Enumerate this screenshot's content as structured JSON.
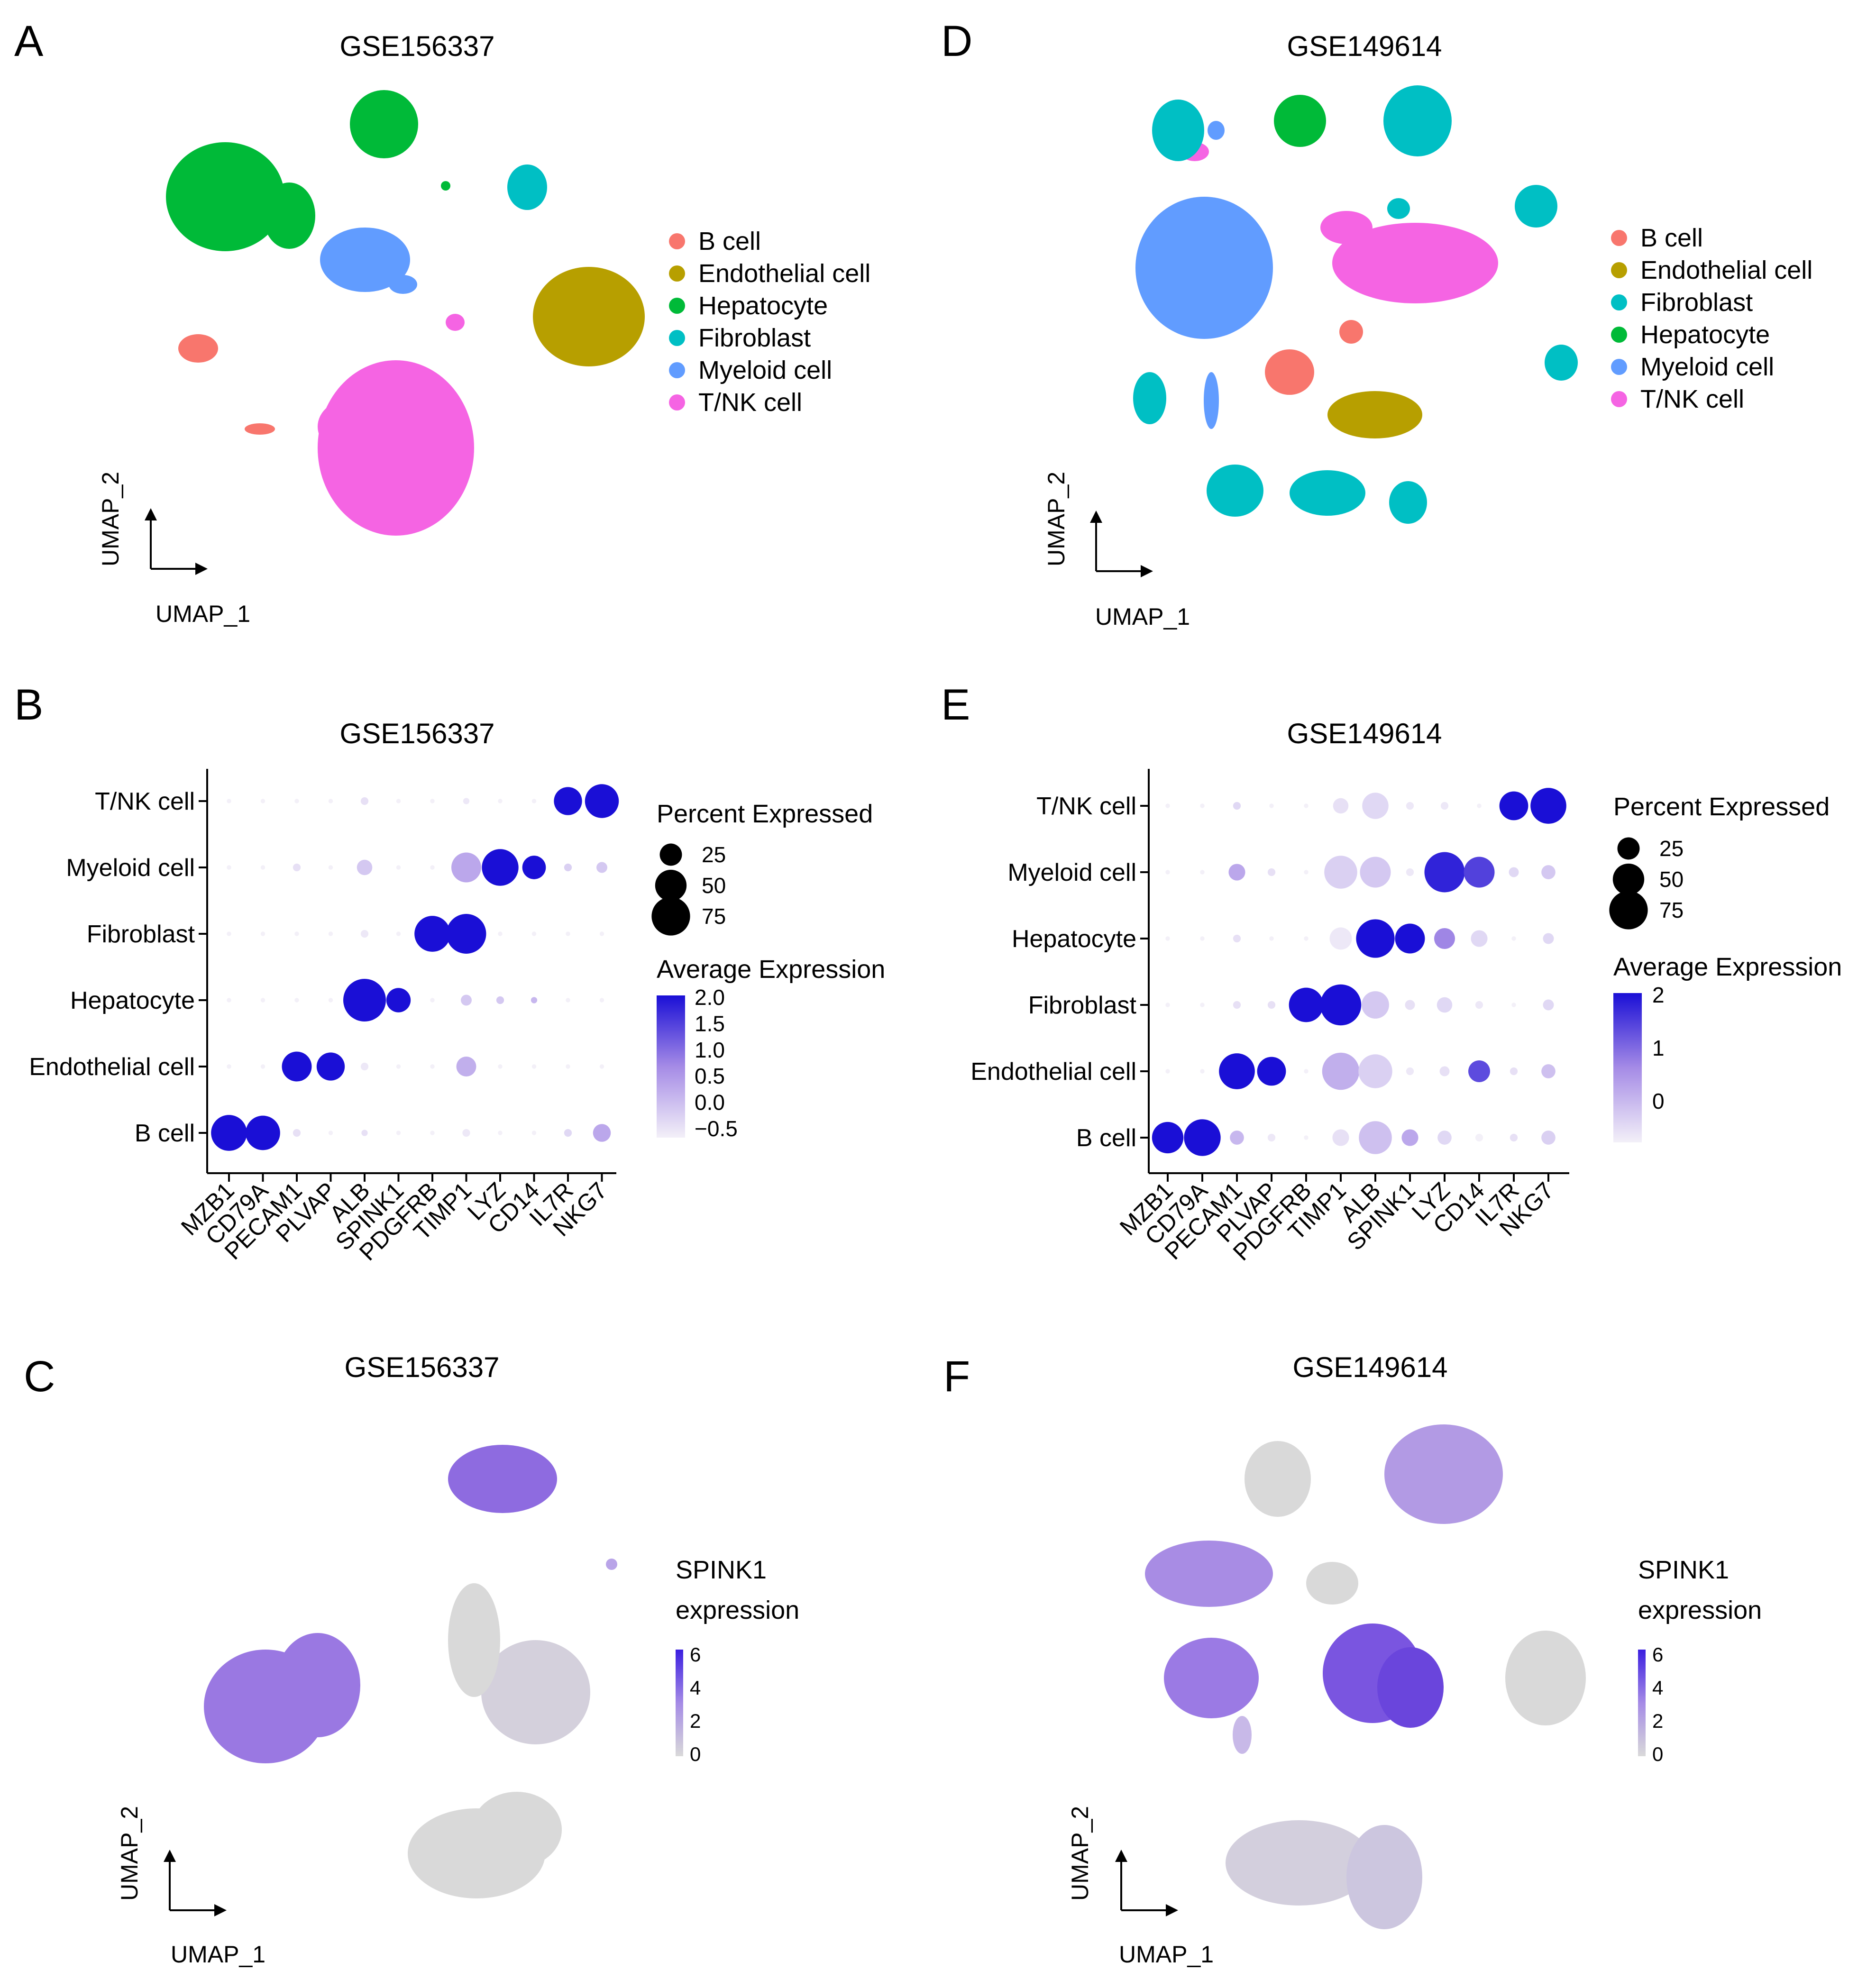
{
  "panels": {
    "A": {
      "label": "A",
      "title": "GSE156337"
    },
    "B": {
      "label": "B",
      "title": "GSE156337"
    },
    "C": {
      "label": "C",
      "title": "GSE156337"
    },
    "D": {
      "label": "D",
      "title": "GSE149614"
    },
    "E": {
      "label": "E",
      "title": "GSE149614"
    },
    "F": {
      "label": "F",
      "title": "GSE149614"
    }
  },
  "axes": {
    "umap_x": "UMAP_1",
    "umap_y": "UMAP_2"
  },
  "colors": {
    "B cell": "#F8766D",
    "Endothelial cell": "#B79F00",
    "Hepatocyte": "#00BA38",
    "Fibroblast": "#00BFC4",
    "Myeloid cell": "#619CFF",
    "T/NK cell": "#F564E3",
    "low_expr": "#d9d9d9",
    "high_expr": "#1a0fd6"
  },
  "legend_A": [
    "B cell",
    "Endothelial cell",
    "Hepatocyte",
    "Fibroblast",
    "Myeloid cell",
    "T/NK cell"
  ],
  "legend_D": [
    "B cell",
    "Endothelial cell",
    "Fibroblast",
    "Hepatocyte",
    "Myeloid cell",
    "T/NK cell"
  ],
  "dot_legend": {
    "size_title": "Percent Expressed",
    "size_values": [
      "25",
      "50",
      "75"
    ],
    "color_title": "Average Expression",
    "B_color_ticks": [
      "2.0",
      "1.5",
      "1.0",
      "0.5",
      "0.0",
      "−0.5"
    ],
    "E_color_ticks": [
      "2",
      "1",
      "0"
    ]
  },
  "feature_legend": {
    "line1": "SPINK1",
    "line2": "expression",
    "ticks": [
      "6",
      "4",
      "2",
      "0"
    ]
  },
  "chart_data": [
    {
      "panel": "B",
      "type": "scatter",
      "subtype": "dotplot",
      "title": "GSE156337",
      "categories": [
        "MZB1",
        "CD79A",
        "PECAM1",
        "PLVAP",
        "ALB",
        "SPINK1",
        "PDGFRB",
        "TIMP1",
        "LYZ",
        "CD14",
        "IL7R",
        "NKG7"
      ],
      "rows": [
        "T/NK cell",
        "Myeloid cell",
        "Fibroblast",
        "Hepatocyte",
        "Endothelial cell",
        "B cell"
      ],
      "pct_expressed": [
        [
          1,
          1,
          1,
          1,
          3,
          1,
          1,
          2,
          1,
          1,
          40,
          58
        ],
        [
          1,
          1,
          3,
          1,
          12,
          1,
          1,
          45,
          68,
          28,
          3,
          6
        ],
        [
          1,
          1,
          1,
          1,
          3,
          1,
          65,
          80,
          1,
          1,
          1,
          1
        ],
        [
          1,
          1,
          1,
          1,
          92,
          30,
          1,
          6,
          3,
          2,
          1,
          1
        ],
        [
          1,
          1,
          45,
          40,
          3,
          1,
          1,
          20,
          1,
          1,
          1,
          1
        ],
        [
          65,
          60,
          3,
          1,
          2,
          1,
          1,
          3,
          1,
          1,
          3,
          16
        ]
      ],
      "avg_expression": [
        [
          -0.5,
          -0.5,
          -0.5,
          -0.5,
          -0.3,
          -0.5,
          -0.5,
          -0.4,
          -0.5,
          -0.5,
          2.0,
          2.0
        ],
        [
          -0.5,
          -0.5,
          -0.3,
          -0.5,
          0.0,
          -0.5,
          -0.5,
          0.4,
          2.0,
          2.0,
          -0.1,
          0.0
        ],
        [
          -0.5,
          -0.5,
          -0.5,
          -0.5,
          -0.4,
          -0.5,
          2.0,
          2.0,
          -0.5,
          -0.5,
          -0.5,
          -0.5
        ],
        [
          -0.5,
          -0.5,
          -0.5,
          -0.5,
          2.0,
          2.0,
          -0.5,
          0.0,
          0.0,
          0.2,
          -0.5,
          -0.5
        ],
        [
          -0.5,
          -0.5,
          2.0,
          2.0,
          -0.4,
          -0.5,
          -0.5,
          0.3,
          -0.5,
          -0.5,
          -0.5,
          -0.5
        ],
        [
          2.0,
          2.0,
          -0.3,
          -0.5,
          -0.3,
          -0.5,
          -0.5,
          -0.4,
          -0.5,
          -0.5,
          -0.2,
          0.4
        ]
      ],
      "size_legend": [
        25,
        50,
        75
      ],
      "color_range": [
        -0.5,
        2.0
      ]
    },
    {
      "panel": "E",
      "type": "scatter",
      "subtype": "dotplot",
      "title": "GSE149614",
      "categories": [
        "MZB1",
        "CD79A",
        "PECAM1",
        "PLVAP",
        "PDGFRB",
        "TIMP1",
        "ALB",
        "SPINK1",
        "LYZ",
        "CD14",
        "IL7R",
        "NKG7"
      ],
      "rows": [
        "T/NK cell",
        "Myeloid cell",
        "Hepatocyte",
        "Fibroblast",
        "Endothelial cell",
        "B cell"
      ],
      "pct_expressed": [
        [
          1,
          1,
          3,
          1,
          1,
          12,
          35,
          3,
          3,
          1,
          42,
          65
        ],
        [
          1,
          1,
          14,
          3,
          1,
          55,
          48,
          3,
          82,
          48,
          5,
          10
        ],
        [
          1,
          1,
          3,
          1,
          1,
          25,
          75,
          45,
          22,
          14,
          1,
          6
        ],
        [
          1,
          1,
          3,
          3,
          60,
          85,
          38,
          5,
          12,
          3,
          1,
          6
        ],
        [
          1,
          1,
          65,
          42,
          1,
          70,
          58,
          3,
          5,
          24,
          3,
          10
        ],
        [
          50,
          68,
          10,
          3,
          1,
          14,
          55,
          14,
          10,
          3,
          3,
          10
        ]
      ],
      "avg_expression": [
        [
          -0.5,
          -0.5,
          -0.2,
          -0.5,
          -0.5,
          -0.3,
          -0.2,
          -0.4,
          -0.4,
          -0.5,
          2.0,
          2.0
        ],
        [
          -0.5,
          -0.5,
          0.4,
          -0.3,
          -0.5,
          -0.1,
          0.0,
          -0.4,
          1.8,
          1.5,
          -0.2,
          0.0
        ],
        [
          -0.5,
          -0.5,
          -0.3,
          -0.5,
          -0.5,
          -0.4,
          2.0,
          2.0,
          0.8,
          -0.2,
          -0.5,
          -0.2
        ],
        [
          -0.5,
          -0.5,
          -0.3,
          -0.3,
          2.0,
          2.0,
          0.0,
          -0.3,
          -0.2,
          -0.4,
          -0.5,
          -0.2
        ],
        [
          -0.5,
          -0.5,
          2.0,
          2.0,
          -0.5,
          0.3,
          -0.1,
          -0.4,
          -0.3,
          1.4,
          -0.3,
          0.1
        ],
        [
          2.0,
          2.0,
          0.2,
          -0.4,
          -0.5,
          -0.3,
          0.1,
          0.4,
          -0.2,
          -0.5,
          -0.3,
          -0.1
        ]
      ],
      "size_legend": [
        25,
        50,
        75
      ],
      "color_range": [
        -0.5,
        2.0
      ]
    }
  ]
}
